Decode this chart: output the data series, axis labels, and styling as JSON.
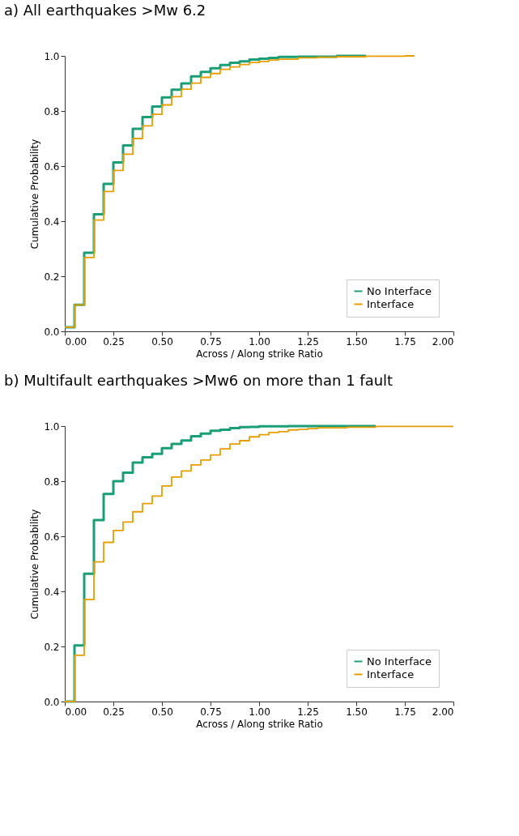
{
  "chart_data": [
    {
      "type": "step",
      "title": "a) All earthquakes >Mw 6.2",
      "xlabel": "Across / Along strike Ratio",
      "ylabel": "Cumulative Probability",
      "xlim": [
        0,
        2
      ],
      "ylim": [
        0,
        1
      ],
      "xticks": [
        {
          "value": 0,
          "label": "0.00"
        },
        {
          "value": 0.25,
          "label": "0.25"
        },
        {
          "value": 0.5,
          "label": "0.50"
        },
        {
          "value": 0.75,
          "label": "0.75"
        },
        {
          "value": 1,
          "label": "1.00"
        },
        {
          "value": 1.25,
          "label": "1.25"
        },
        {
          "value": 1.5,
          "label": "1.50"
        },
        {
          "value": 1.75,
          "label": "1.75"
        },
        {
          "value": 2,
          "label": "2.00"
        }
      ],
      "yticks": [
        {
          "value": 0,
          "label": "0.0"
        },
        {
          "value": 0.2,
          "label": "0.2"
        },
        {
          "value": 0.4,
          "label": "0.4"
        },
        {
          "value": 0.6,
          "label": "0.6"
        },
        {
          "value": 0.8,
          "label": "0.8"
        },
        {
          "value": 1,
          "label": "1.0"
        }
      ],
      "legend": "bottom right",
      "grid": false,
      "line_style": "solid",
      "marker": "none",
      "series": [
        {
          "name": "No Interface",
          "color": "#1a9e77",
          "x": [
            0,
            0.05,
            0.1,
            0.15,
            0.2,
            0.25,
            0.3,
            0.35,
            0.4,
            0.45,
            0.5,
            0.55,
            0.6,
            0.65,
            0.7,
            0.75,
            0.8,
            0.85,
            0.9,
            0.95,
            1.0,
            1.05,
            1.1,
            1.2,
            1.4,
            1.55
          ],
          "values": [
            0.015,
            0.096,
            0.285,
            0.425,
            0.535,
            0.613,
            0.675,
            0.735,
            0.778,
            0.816,
            0.849,
            0.877,
            0.9,
            0.926,
            0.942,
            0.955,
            0.967,
            0.975,
            0.98,
            0.987,
            0.99,
            0.993,
            0.996,
            0.997,
            1.0,
            1.0
          ]
        },
        {
          "name": "Interface",
          "color": "#e69d00",
          "x": [
            0,
            0.05,
            0.1,
            0.15,
            0.2,
            0.25,
            0.3,
            0.35,
            0.4,
            0.45,
            0.5,
            0.55,
            0.6,
            0.65,
            0.7,
            0.75,
            0.8,
            0.85,
            0.9,
            0.95,
            1.0,
            1.05,
            1.1,
            1.2,
            1.3,
            1.4,
            1.55,
            1.75,
            1.8
          ],
          "values": [
            0.015,
            0.096,
            0.268,
            0.404,
            0.508,
            0.584,
            0.643,
            0.7,
            0.746,
            0.788,
            0.822,
            0.852,
            0.879,
            0.901,
            0.922,
            0.936,
            0.951,
            0.96,
            0.969,
            0.976,
            0.98,
            0.985,
            0.988,
            0.993,
            0.995,
            0.997,
            0.999,
            1.0,
            1.0
          ]
        }
      ]
    },
    {
      "type": "step",
      "title": "b) Multifault earthquakes >Mw6 on more than 1 fault",
      "xlabel": "Across / Along strike Ratio",
      "ylabel": "Cumulative Probability",
      "xlim": [
        0,
        2
      ],
      "ylim": [
        0,
        1
      ],
      "xticks": [
        {
          "value": 0,
          "label": "0.00"
        },
        {
          "value": 0.25,
          "label": "0.25"
        },
        {
          "value": 0.5,
          "label": "0.50"
        },
        {
          "value": 0.75,
          "label": "0.75"
        },
        {
          "value": 1,
          "label": "1.00"
        },
        {
          "value": 1.25,
          "label": "1.25"
        },
        {
          "value": 1.5,
          "label": "1.50"
        },
        {
          "value": 1.75,
          "label": "1.75"
        },
        {
          "value": 2,
          "label": "2.00"
        }
      ],
      "yticks": [
        {
          "value": 0,
          "label": "0.0"
        },
        {
          "value": 0.2,
          "label": "0.2"
        },
        {
          "value": 0.4,
          "label": "0.4"
        },
        {
          "value": 0.6,
          "label": "0.6"
        },
        {
          "value": 0.8,
          "label": "0.8"
        },
        {
          "value": 1,
          "label": "1.0"
        }
      ],
      "legend": "bottom right",
      "grid": false,
      "line_style": "solid",
      "marker": "none",
      "series": [
        {
          "name": "No Interface",
          "color": "#1a9e77",
          "x": [
            0,
            0.05,
            0.1,
            0.15,
            0.2,
            0.25,
            0.3,
            0.35,
            0.4,
            0.45,
            0.5,
            0.55,
            0.6,
            0.65,
            0.7,
            0.75,
            0.8,
            0.85,
            0.9,
            0.95,
            1.0,
            1.15,
            1.6
          ],
          "values": [
            0,
            0.204,
            0.464,
            0.659,
            0.754,
            0.8,
            0.831,
            0.868,
            0.887,
            0.899,
            0.92,
            0.935,
            0.948,
            0.963,
            0.973,
            0.983,
            0.987,
            0.993,
            0.996,
            0.997,
            0.999,
            1.0,
            1.0
          ]
        },
        {
          "name": "Interface",
          "color": "#e69d00",
          "x": [
            0,
            0.05,
            0.1,
            0.15,
            0.2,
            0.25,
            0.3,
            0.35,
            0.4,
            0.45,
            0.5,
            0.55,
            0.6,
            0.65,
            0.7,
            0.75,
            0.8,
            0.85,
            0.9,
            0.95,
            1.0,
            1.05,
            1.1,
            1.15,
            1.2,
            1.25,
            1.3,
            1.45,
            1.6,
            2.0
          ],
          "values": [
            0,
            0.168,
            0.37,
            0.507,
            0.578,
            0.621,
            0.652,
            0.689,
            0.719,
            0.746,
            0.783,
            0.815,
            0.837,
            0.859,
            0.877,
            0.895,
            0.917,
            0.935,
            0.947,
            0.961,
            0.969,
            0.977,
            0.98,
            0.986,
            0.988,
            0.991,
            0.994,
            0.996,
            0.999,
            0.999
          ]
        }
      ]
    }
  ]
}
